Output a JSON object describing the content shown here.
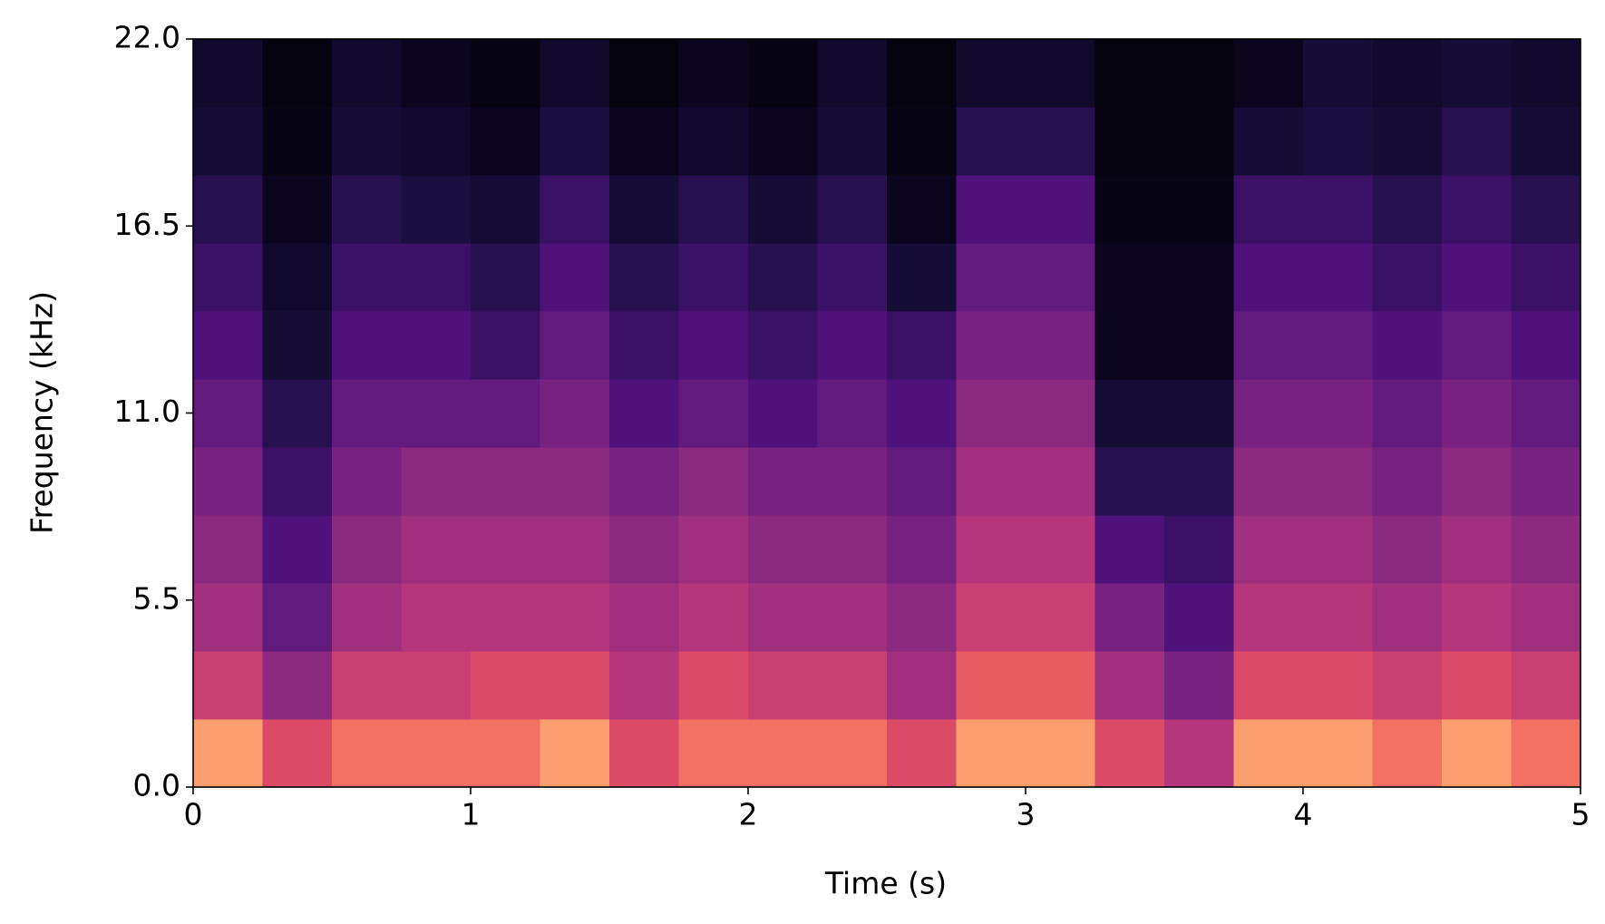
{
  "chart_data": {
    "type": "spectrogram",
    "x_label": "Time (s)",
    "y_label": "Frequency (kHz)",
    "xlim": [
      0,
      5
    ],
    "ylim": [
      0,
      22
    ],
    "xticks": [
      0,
      1,
      2,
      3,
      4,
      5
    ],
    "yticks": [
      {
        "value": 0,
        "label": "0.0"
      },
      5.5,
      {
        "value": 11,
        "label": "11.0"
      },
      16.5,
      {
        "value": 22,
        "label": "22.0"
      }
    ],
    "colormap": "magma",
    "z": [
      [
        0.8,
        0.6,
        0.7,
        0.7,
        0.7,
        0.8,
        0.6,
        0.7,
        0.7,
        0.7,
        0.6,
        0.8,
        0.8,
        0.6,
        0.5,
        0.8,
        0.8,
        0.7,
        0.8,
        0.7
      ],
      [
        0.55,
        0.4,
        0.55,
        0.55,
        0.6,
        0.6,
        0.5,
        0.6,
        0.55,
        0.55,
        0.45,
        0.65,
        0.65,
        0.45,
        0.35,
        0.6,
        0.6,
        0.55,
        0.6,
        0.55
      ],
      [
        0.45,
        0.3,
        0.45,
        0.5,
        0.5,
        0.5,
        0.45,
        0.5,
        0.45,
        0.45,
        0.4,
        0.55,
        0.55,
        0.35,
        0.25,
        0.5,
        0.5,
        0.45,
        0.5,
        0.45
      ],
      [
        0.4,
        0.25,
        0.4,
        0.45,
        0.45,
        0.45,
        0.4,
        0.45,
        0.4,
        0.4,
        0.35,
        0.5,
        0.5,
        0.25,
        0.2,
        0.45,
        0.45,
        0.4,
        0.45,
        0.4
      ],
      [
        0.35,
        0.2,
        0.35,
        0.4,
        0.4,
        0.4,
        0.35,
        0.4,
        0.35,
        0.35,
        0.3,
        0.45,
        0.45,
        0.15,
        0.15,
        0.4,
        0.4,
        0.35,
        0.4,
        0.35
      ],
      [
        0.3,
        0.15,
        0.3,
        0.3,
        0.3,
        0.35,
        0.25,
        0.3,
        0.25,
        0.3,
        0.25,
        0.4,
        0.4,
        0.1,
        0.1,
        0.35,
        0.35,
        0.3,
        0.35,
        0.3
      ],
      [
        0.25,
        0.1,
        0.25,
        0.25,
        0.2,
        0.3,
        0.2,
        0.25,
        0.2,
        0.25,
        0.2,
        0.35,
        0.35,
        0.05,
        0.05,
        0.3,
        0.3,
        0.25,
        0.3,
        0.25
      ],
      [
        0.2,
        0.08,
        0.2,
        0.2,
        0.15,
        0.25,
        0.15,
        0.2,
        0.15,
        0.2,
        0.1,
        0.3,
        0.3,
        0.05,
        0.05,
        0.25,
        0.25,
        0.2,
        0.25,
        0.2
      ],
      [
        0.15,
        0.05,
        0.15,
        0.12,
        0.1,
        0.2,
        0.1,
        0.15,
        0.1,
        0.15,
        0.05,
        0.25,
        0.25,
        0.03,
        0.03,
        0.2,
        0.2,
        0.15,
        0.2,
        0.15
      ],
      [
        0.1,
        0.03,
        0.1,
        0.08,
        0.05,
        0.12,
        0.05,
        0.08,
        0.05,
        0.1,
        0.03,
        0.15,
        0.15,
        0.02,
        0.02,
        0.1,
        0.12,
        0.1,
        0.15,
        0.1
      ],
      [
        0.08,
        0.02,
        0.08,
        0.05,
        0.03,
        0.08,
        0.02,
        0.05,
        0.03,
        0.08,
        0.02,
        0.08,
        0.08,
        0.02,
        0.02,
        0.05,
        0.1,
        0.08,
        0.1,
        0.08
      ]
    ]
  }
}
